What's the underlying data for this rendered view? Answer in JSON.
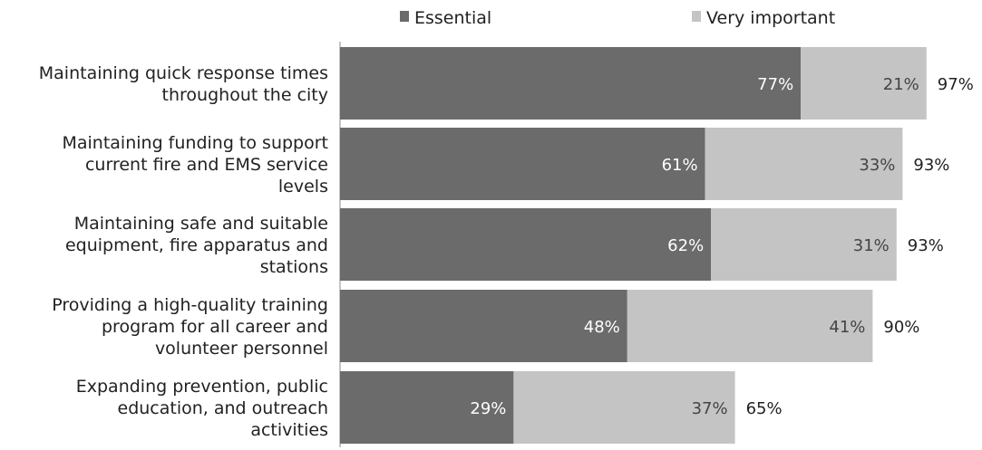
{
  "chart_data": {
    "type": "bar",
    "orientation": "horizontal",
    "stacked": true,
    "title": "",
    "xlabel": "",
    "ylabel": "",
    "xlim": [
      0,
      100
    ],
    "grid": false,
    "legend_position": "top",
    "categories": [
      [
        "Maintaining quick response times",
        "throughout the city"
      ],
      [
        "Maintaining funding to support",
        "current fire and EMS service",
        "levels"
      ],
      [
        "Maintaining safe and suitable",
        "equipment, fire apparatus and",
        "stations"
      ],
      [
        "Providing a high-quality training",
        "program for all career and",
        "volunteer personnel"
      ],
      [
        "Expanding prevention, public",
        "education, and outreach",
        "activities"
      ]
    ],
    "series": [
      {
        "name": "Essential",
        "values": [
          77,
          61,
          62,
          48,
          29
        ],
        "labels": [
          "77%",
          "61%",
          "62%",
          "48%",
          "29%"
        ],
        "color": "#6b6b6b"
      },
      {
        "name": "Very important",
        "values": [
          21,
          33,
          31,
          41,
          37
        ],
        "labels": [
          "21%",
          "33%",
          "31%",
          "41%",
          "37%"
        ],
        "color": "#c4c4c4"
      }
    ],
    "totals": [
      97,
      93,
      93,
      90,
      65
    ],
    "total_labels": [
      "97%",
      "93%",
      "93%",
      "90%",
      "65%"
    ]
  }
}
